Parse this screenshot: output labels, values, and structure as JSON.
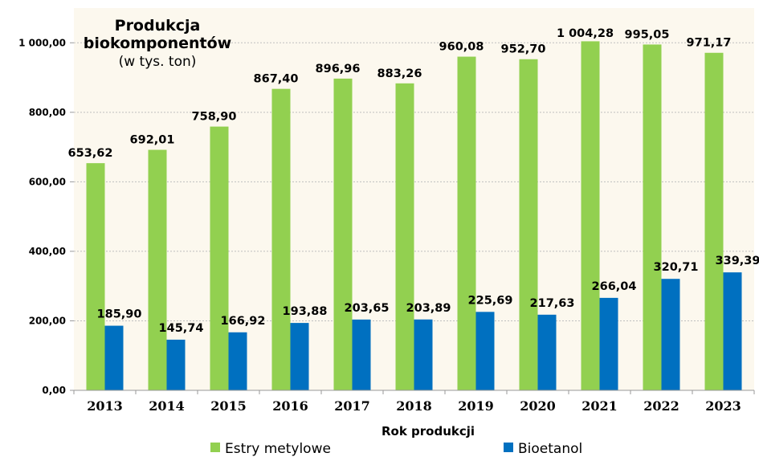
{
  "chart_data": {
    "type": "bar",
    "title": "Produkcja biokomponentów",
    "title_lines": [
      "Produkcja",
      "biokomponentów"
    ],
    "subtitle": "(w tys. ton)",
    "xlabel": "Rok produkcji",
    "ylabel": "",
    "ylim": [
      0,
      1100
    ],
    "yticks": [
      0,
      200,
      400,
      600,
      800,
      1000
    ],
    "ytick_labels": [
      "0,00",
      "200,00",
      "400,00",
      "600,00",
      "800,00",
      "1 000,00"
    ],
    "grid": true,
    "legend_position": "bottom",
    "categories": [
      "2013",
      "2014",
      "2015",
      "2016",
      "2017",
      "2018",
      "2019",
      "2020",
      "2021",
      "2022",
      "2023"
    ],
    "series": [
      {
        "name": "Estry metylowe",
        "color": "#92d050",
        "values": [
          653.62,
          692.01,
          758.9,
          867.4,
          896.96,
          883.26,
          960.08,
          952.7,
          1004.28,
          995.05,
          971.17
        ],
        "labels": [
          "653,62",
          "692,01",
          "758,90",
          "867,40",
          "896,96",
          "883,26",
          "960,08",
          "952,70",
          "1 004,28",
          "995,05",
          "971,17"
        ]
      },
      {
        "name": "Bioetanol",
        "color": "#0070c0",
        "values": [
          185.9,
          145.74,
          166.92,
          193.88,
          203.65,
          203.89,
          225.69,
          217.63,
          266.04,
          320.71,
          339.39
        ],
        "labels": [
          "185,90",
          "145,74",
          "166,92",
          "193,88",
          "203,65",
          "203,89",
          "225,69",
          "217,63",
          "266,04",
          "320,71",
          "339,39"
        ]
      }
    ],
    "plot_background": "#fcf8ee"
  }
}
